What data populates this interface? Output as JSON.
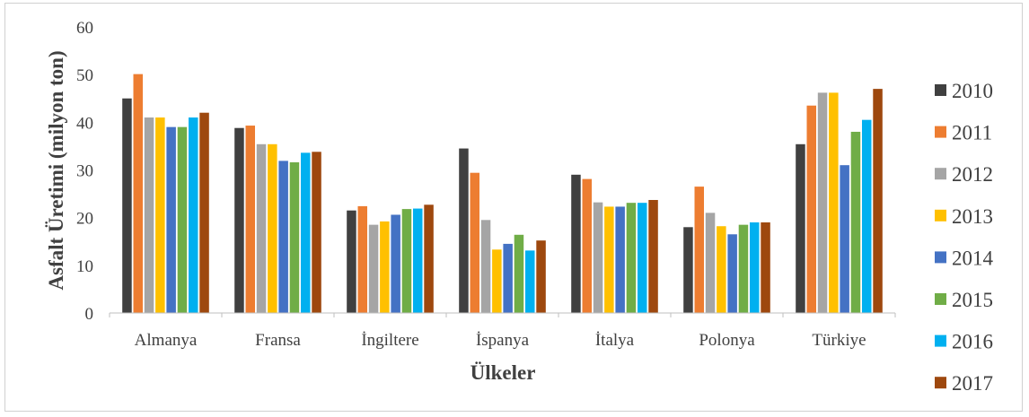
{
  "chart_data": {
    "type": "bar",
    "title": "",
    "xlabel": "Ülkeler",
    "ylabel": "Asfalt Üretimi (milyon ton)",
    "ylim": [
      0,
      60
    ],
    "yticks": [
      "0",
      "10",
      "20",
      "30",
      "40",
      "50",
      "60"
    ],
    "grid": false,
    "legend_position": "right",
    "categories": [
      "Almanya",
      "Fransa",
      "İngiltere",
      "İspanya",
      "İtalya",
      "Polonya",
      "Türkiye"
    ],
    "series": [
      {
        "name": "2010",
        "color": "#404040",
        "values": [
          45.0,
          38.8,
          21.5,
          34.5,
          29.0,
          18.0,
          35.4
        ]
      },
      {
        "name": "2011",
        "color": "#ED7D31",
        "values": [
          50.1,
          39.3,
          22.4,
          29.4,
          28.1,
          26.5,
          43.5
        ]
      },
      {
        "name": "2012",
        "color": "#A5A5A5",
        "values": [
          41.0,
          35.4,
          18.5,
          19.5,
          23.2,
          21.0,
          46.2
        ]
      },
      {
        "name": "2013",
        "color": "#FFC000",
        "values": [
          41.0,
          35.4,
          19.2,
          13.3,
          22.3,
          18.2,
          46.2
        ]
      },
      {
        "name": "2014",
        "color": "#4472C4",
        "values": [
          39.0,
          31.9,
          20.6,
          14.5,
          22.3,
          16.5,
          31.0
        ]
      },
      {
        "name": "2015",
        "color": "#70AD47",
        "values": [
          39.0,
          31.6,
          21.8,
          16.4,
          23.1,
          18.5,
          38.0
        ]
      },
      {
        "name": "2016",
        "color": "#00B0F0",
        "values": [
          41.0,
          33.6,
          21.9,
          13.1,
          23.1,
          19.0,
          40.5
        ]
      },
      {
        "name": "2017",
        "color": "#9E480E",
        "values": [
          42.0,
          33.8,
          22.7,
          15.2,
          23.7,
          19.0,
          47.0
        ]
      }
    ]
  }
}
